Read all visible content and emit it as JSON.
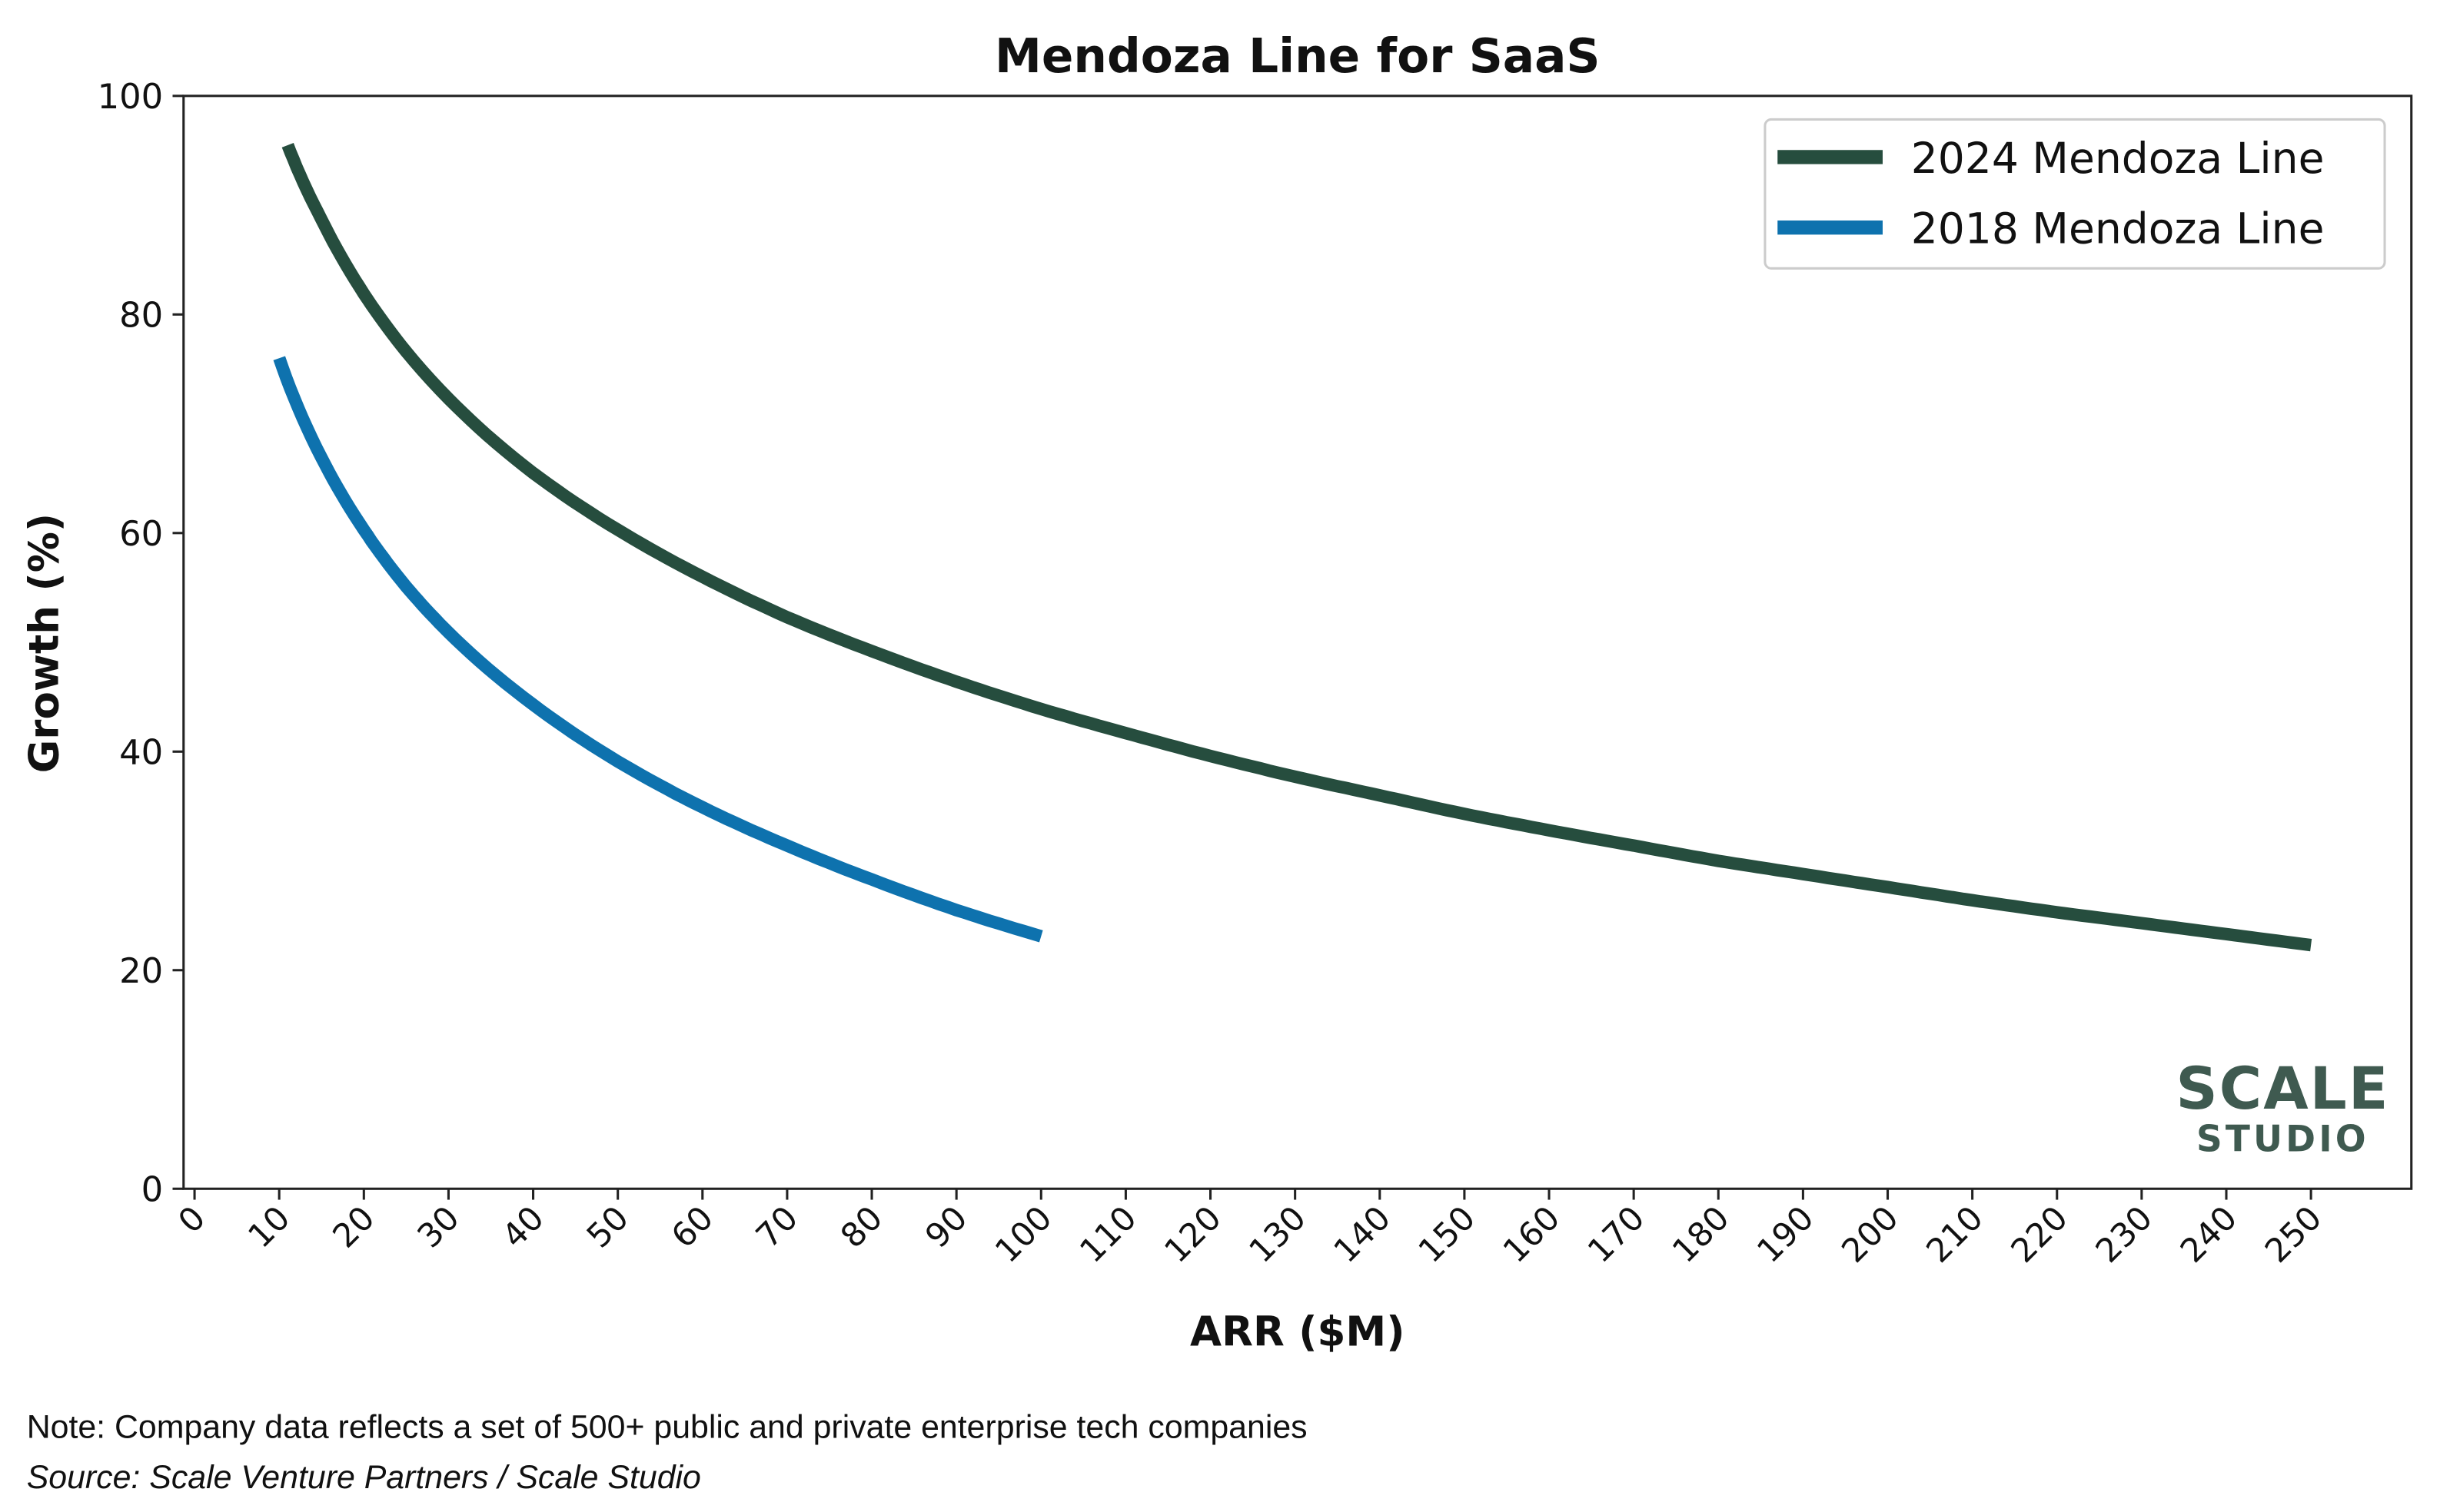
{
  "chart_data": {
    "type": "line",
    "title": "Mendoza Line for SaaS",
    "xlabel": "ARR ($M)",
    "ylabel": "Growth (%)",
    "xlim": [
      -2,
      262
    ],
    "ylim": [
      0,
      100
    ],
    "xticks": [
      0,
      10,
      20,
      30,
      40,
      50,
      60,
      70,
      80,
      90,
      100,
      110,
      120,
      130,
      140,
      150,
      160,
      170,
      180,
      190,
      200,
      210,
      220,
      230,
      240,
      250
    ],
    "yticks": [
      0,
      20,
      40,
      60,
      80,
      100
    ],
    "grid": false,
    "legend_position": "top-right",
    "series": [
      {
        "name": "2024 Mendoza Line",
        "color": "#264d3e",
        "x": [
          11,
          15,
          20,
          25,
          30,
          40,
          50,
          60,
          70,
          80,
          90,
          100,
          110,
          120,
          130,
          140,
          150,
          160,
          170,
          180,
          190,
          200,
          210,
          220,
          230,
          240,
          250
        ],
        "y": [
          95.5,
          88.7,
          81.9,
          76.6,
          72.3,
          65.5,
          60.3,
          56.0,
          52.3,
          49.2,
          46.4,
          43.9,
          41.7,
          39.6,
          37.7,
          36.0,
          34.3,
          32.8,
          31.4,
          30.0,
          28.8,
          27.6,
          26.4,
          25.3,
          24.3,
          23.3,
          22.3
        ]
      },
      {
        "name": "2018 Mendoza Line",
        "color": "#0e72ae",
        "x": [
          10,
          15,
          20,
          25,
          30,
          40,
          50,
          60,
          70,
          80,
          90,
          100
        ],
        "y": [
          76.0,
          66.9,
          60.3,
          55.1,
          50.9,
          44.3,
          39.1,
          34.9,
          31.4,
          28.3,
          25.5,
          23.1
        ]
      }
    ]
  },
  "logo": {
    "line1": "SCALE",
    "line2": "STUDIO",
    "color": "#3f5a50"
  },
  "footer": {
    "note": "Note: Company data reflects a set of 500+ public and private enterprise tech companies",
    "source": "Source: Scale Venture Partners / Scale Studio"
  }
}
